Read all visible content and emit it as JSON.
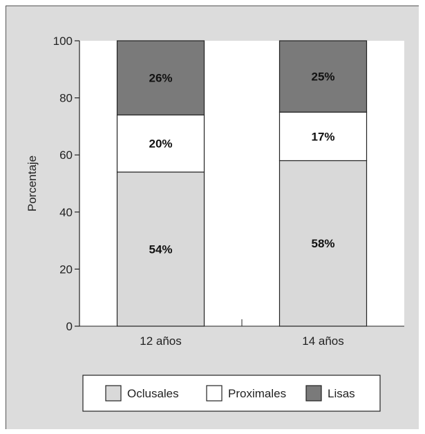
{
  "chart_data": {
    "type": "bar",
    "stacked": true,
    "categories": [
      "12 años",
      "14 años"
    ],
    "series": [
      {
        "name": "Oclusales",
        "values": [
          54,
          58
        ],
        "labels": [
          "54%",
          "58%"
        ],
        "color": "#d9d9d9"
      },
      {
        "name": "Proximales",
        "values": [
          20,
          17
        ],
        "labels": [
          "20%",
          "17%"
        ],
        "color": "#ffffff"
      },
      {
        "name": "Lisas",
        "values": [
          26,
          25
        ],
        "labels": [
          "26%",
          "25%"
        ],
        "color": "#7a7a7a"
      }
    ],
    "ylabel": "Porcentaje",
    "ylim": [
      0,
      100
    ],
    "yticks": [
      0,
      20,
      40,
      60,
      80,
      100
    ],
    "legend_position": "bottom",
    "plot_background": "#ffffff",
    "frame_background": "#dcdcdc"
  }
}
